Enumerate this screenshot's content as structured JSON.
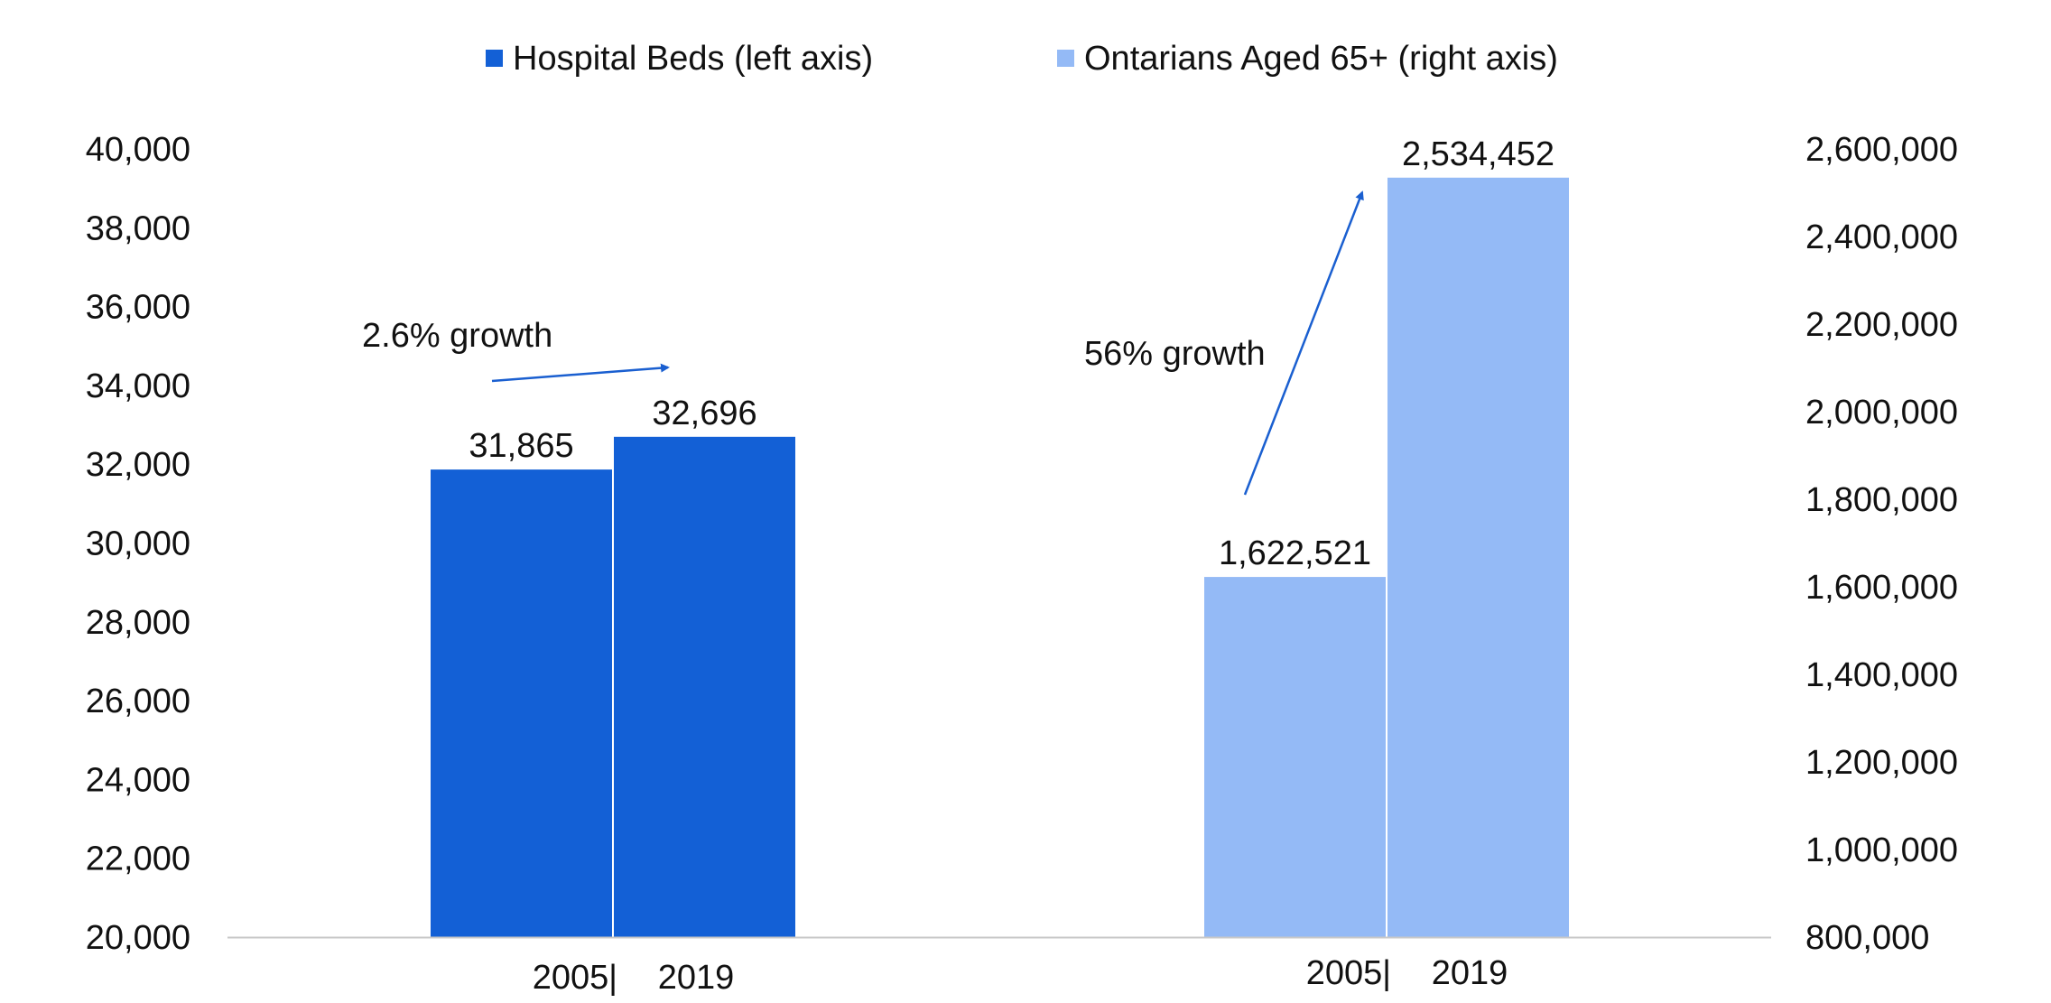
{
  "chart_data": {
    "type": "bar",
    "title": "",
    "legend": {
      "placement": "top-center",
      "entries": [
        {
          "label": "Hospital Beds (left axis)",
          "color": "#1360d6"
        },
        {
          "label": "Ontarians Aged 65+ (right axis)",
          "color": "#94baf6"
        }
      ]
    },
    "left_axis": {
      "ylim": [
        20000,
        40000
      ],
      "ticks": [
        20000,
        22000,
        24000,
        26000,
        28000,
        30000,
        32000,
        34000,
        36000,
        38000,
        40000
      ],
      "tick_labels": [
        "20,000",
        "22,000",
        "24,000",
        "26,000",
        "28,000",
        "30,000",
        "32,000",
        "34,000",
        "36,000",
        "38,000",
        "40,000"
      ]
    },
    "right_axis": {
      "ylim": [
        800000,
        2600000
      ],
      "ticks": [
        800000,
        1000000,
        1200000,
        1400000,
        1600000,
        1800000,
        2000000,
        2200000,
        2400000,
        2600000
      ],
      "tick_labels": [
        "800,000",
        "1,000,000",
        "1,200,000",
        "1,400,000",
        "1,600,000",
        "1,800,000",
        "2,000,000",
        "2,200,000",
        "2,400,000",
        "2,600,000"
      ]
    },
    "series": [
      {
        "name": "Hospital Beds (left axis)",
        "axis": "left",
        "color": "#1360d6",
        "x": [
          "2005",
          "2019"
        ],
        "values": [
          31865,
          32696
        ],
        "data_labels": [
          "31,865",
          "32,696"
        ],
        "category_label": {
          "left": "2005",
          "sep": "|",
          "right": "2019"
        },
        "growth_annotation": "2.6% growth"
      },
      {
        "name": "Ontarians Aged 65+ (right axis)",
        "axis": "right",
        "color": "#94baf6",
        "x": [
          "2005",
          "2019"
        ],
        "values": [
          1622521,
          2534452
        ],
        "data_labels": [
          "1,622,521",
          "2,534,452"
        ],
        "category_label": {
          "left": "2005",
          "sep": "|",
          "right": "2019"
        },
        "growth_annotation": "56% growth"
      }
    ],
    "grid": false,
    "arrow_color": "#1a5fd0",
    "baseline_color": "#c8c8c8"
  }
}
